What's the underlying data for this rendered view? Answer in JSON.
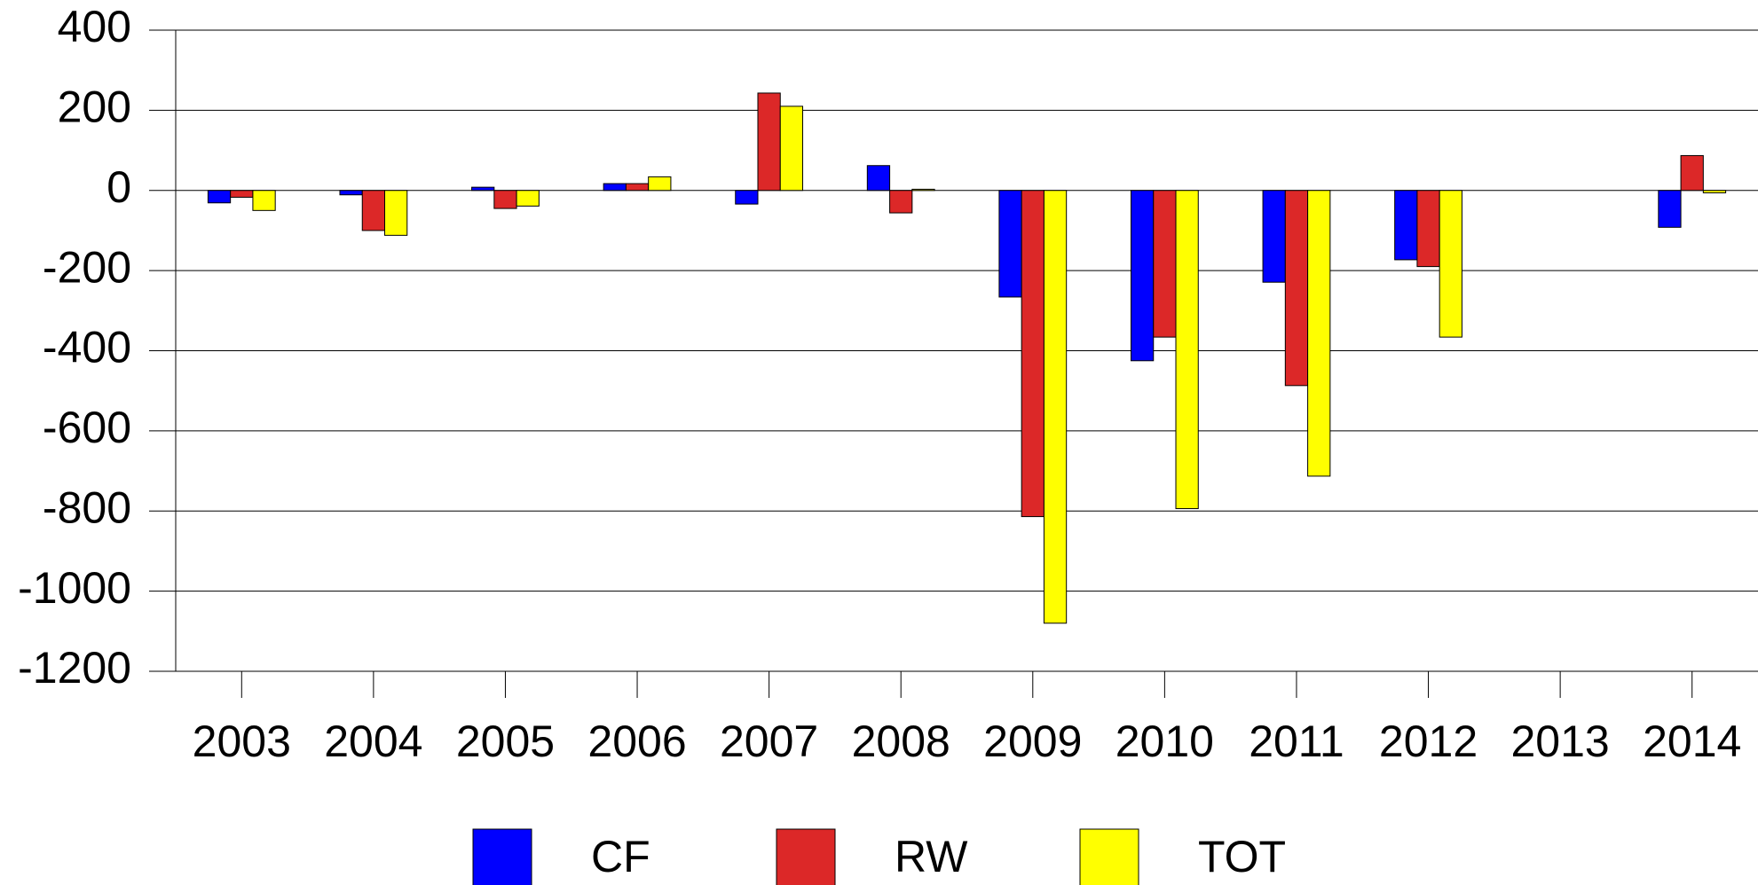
{
  "chart_data": {
    "type": "bar",
    "categories": [
      "2003",
      "2004",
      "2005",
      "2006",
      "2007",
      "2008",
      "2009",
      "2010",
      "2011",
      "2012",
      "2013",
      "2014"
    ],
    "series": [
      {
        "name": "CF",
        "color": "#0000ff",
        "values": [
          -31,
          -11,
          8,
          17,
          -34,
          62,
          -266,
          -425,
          -229,
          -173,
          null,
          -92
        ]
      },
      {
        "name": "RW",
        "color": "#dc2828",
        "values": [
          -17,
          -100,
          -45,
          17,
          243,
          -56,
          -814,
          -366,
          -487,
          -190,
          null,
          87
        ]
      },
      {
        "name": "TOT",
        "color": "#ffff00",
        "values": [
          -50,
          -112,
          -39,
          34,
          210,
          3,
          -1080,
          -794,
          -713,
          -366,
          null,
          -6
        ]
      }
    ],
    "ylim": [
      -1200,
      400
    ],
    "yticks": [
      -1200,
      -1000,
      -800,
      -600,
      -400,
      -200,
      0,
      200,
      400
    ],
    "grid": true,
    "legend": "bottom"
  }
}
